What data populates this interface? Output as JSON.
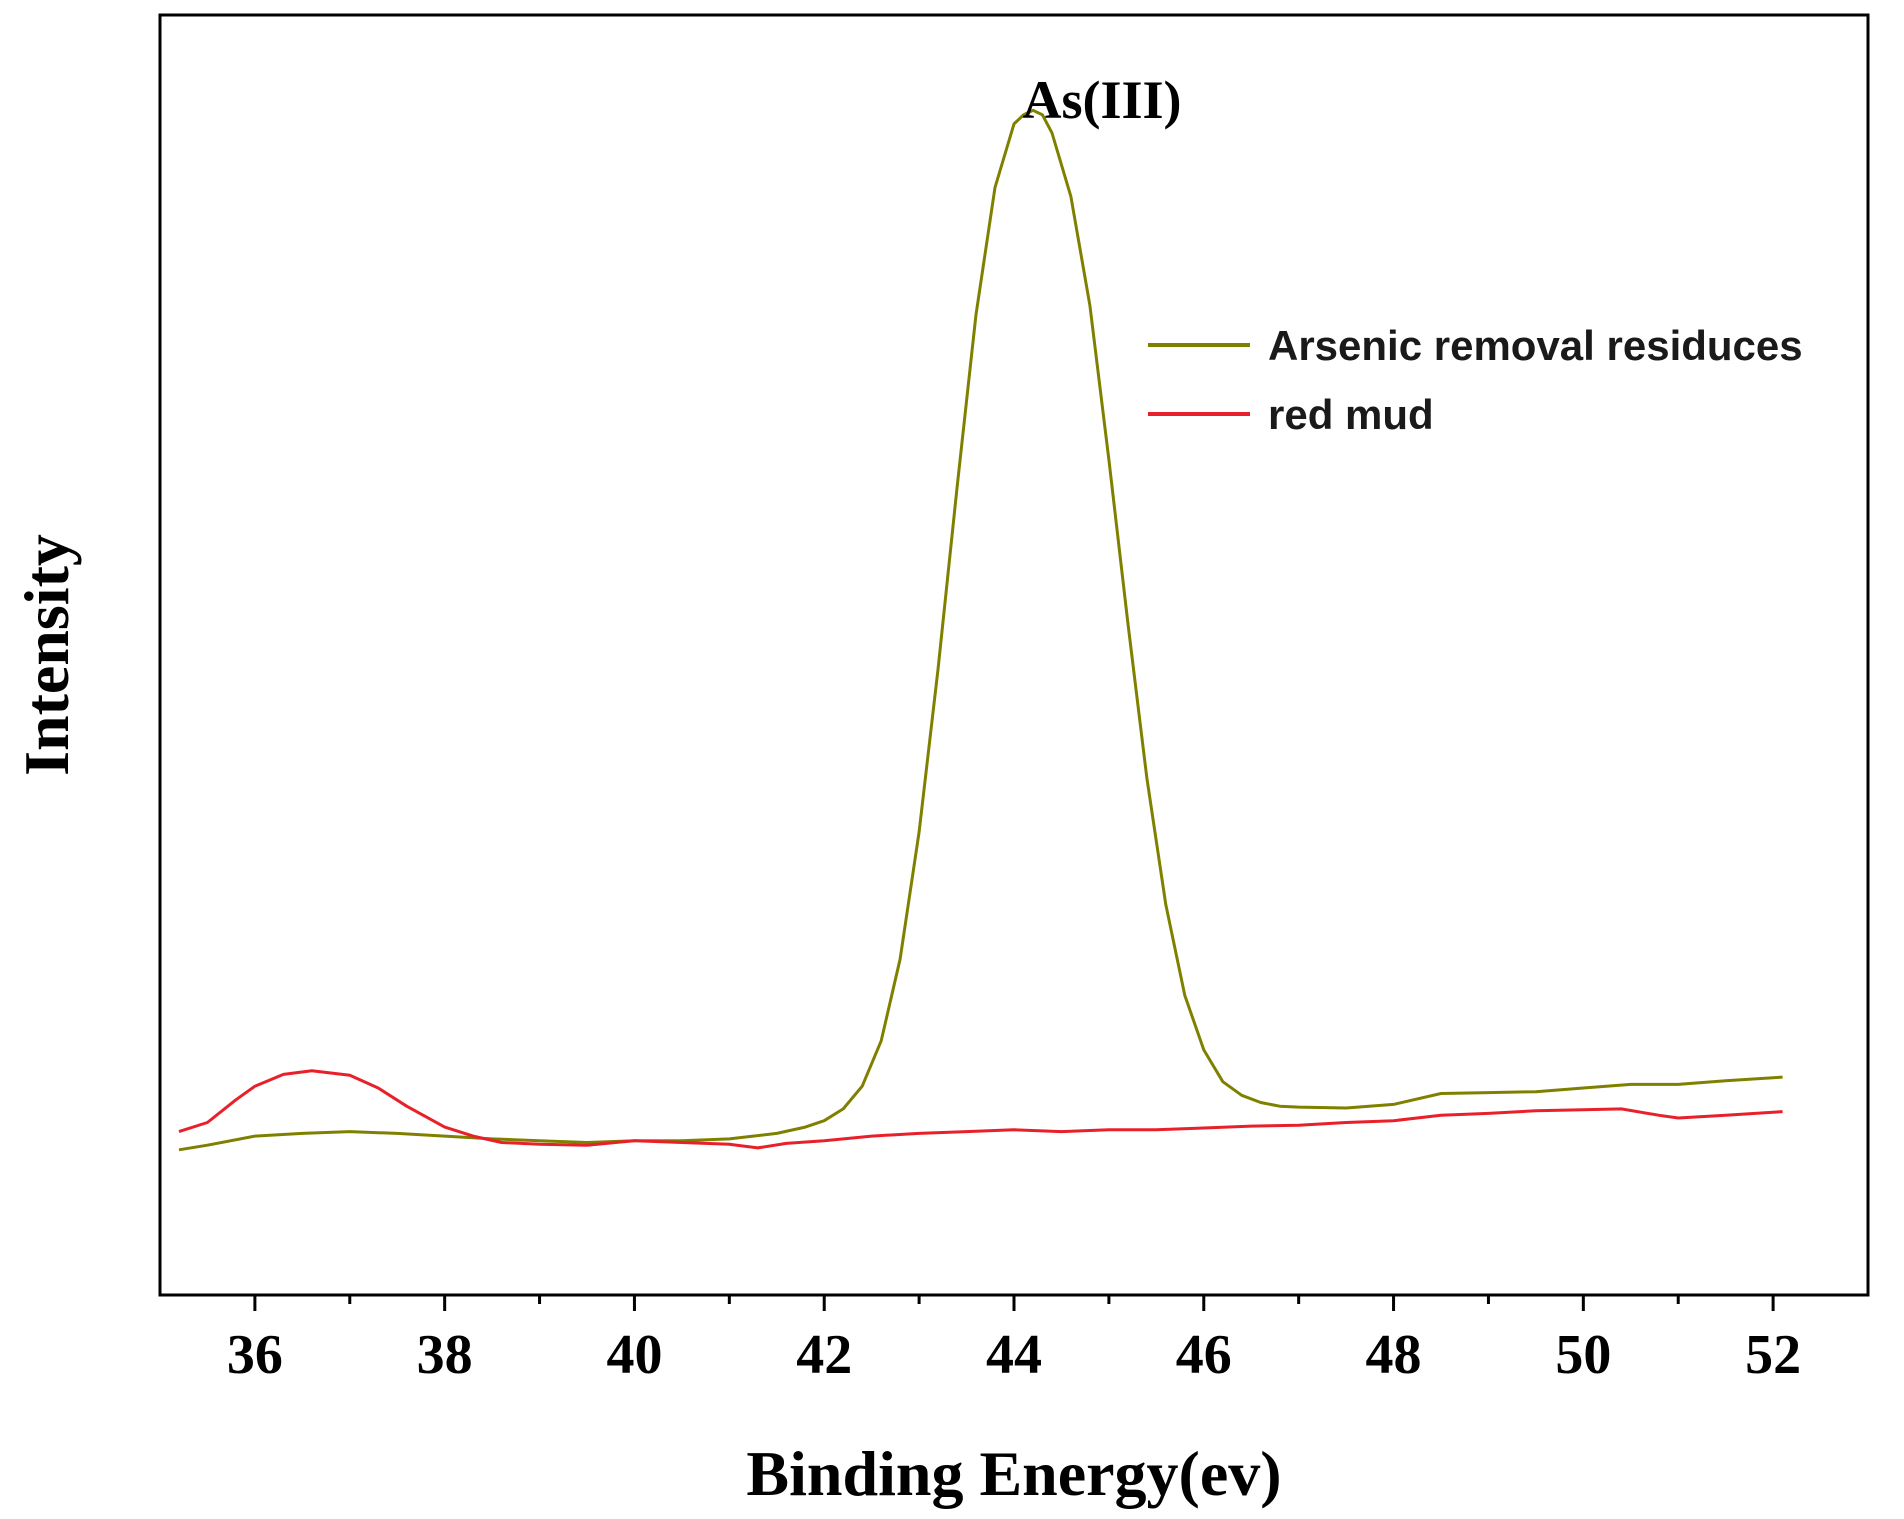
{
  "chart_data": {
    "type": "line",
    "title": "",
    "xlabel": "Binding Energy(ev)",
    "ylabel": "Intensity",
    "xlim": [
      35.0,
      53.0
    ],
    "ylim": [
      -1.6,
      12.5
    ],
    "xticks": [
      36,
      38,
      40,
      42,
      44,
      46,
      48,
      50,
      52
    ],
    "xtick_labels": [
      "36",
      "38",
      "40",
      "42",
      "44",
      "46",
      "48",
      "50",
      "52"
    ],
    "minor_xticks": [
      37,
      39,
      41,
      43,
      45,
      47,
      49,
      51
    ],
    "yticks_shown": false,
    "grid": false,
    "legend_position": "upper-right",
    "annotations": [
      {
        "text": "As(III)",
        "x": 44.2,
        "y": 11.6
      }
    ],
    "series": [
      {
        "name": "Arsenic removal residuces",
        "color": "#808000",
        "x": [
          35.2,
          35.5,
          36.0,
          36.5,
          37.0,
          37.5,
          38.0,
          38.5,
          39.0,
          39.5,
          40.0,
          40.5,
          41.0,
          41.5,
          41.8,
          42.0,
          42.2,
          42.4,
          42.6,
          42.8,
          43.0,
          43.2,
          43.4,
          43.6,
          43.8,
          44.0,
          44.1,
          44.2,
          44.3,
          44.4,
          44.6,
          44.8,
          45.0,
          45.2,
          45.4,
          45.6,
          45.8,
          46.0,
          46.2,
          46.4,
          46.6,
          46.8,
          47.0,
          47.5,
          48.0,
          48.5,
          49.0,
          49.5,
          50.0,
          50.5,
          51.0,
          51.5,
          52.1
        ],
        "values": [
          0.0,
          0.05,
          0.15,
          0.18,
          0.2,
          0.18,
          0.15,
          0.12,
          0.1,
          0.08,
          0.1,
          0.1,
          0.12,
          0.18,
          0.25,
          0.32,
          0.45,
          0.7,
          1.2,
          2.1,
          3.5,
          5.3,
          7.3,
          9.2,
          10.6,
          11.3,
          11.4,
          11.45,
          11.4,
          11.2,
          10.5,
          9.3,
          7.6,
          5.8,
          4.1,
          2.7,
          1.7,
          1.1,
          0.75,
          0.6,
          0.52,
          0.48,
          0.47,
          0.46,
          0.5,
          0.62,
          0.63,
          0.64,
          0.68,
          0.72,
          0.72,
          0.76,
          0.8
        ]
      },
      {
        "name": "red mud",
        "color": "#e8202a",
        "x": [
          35.2,
          35.5,
          35.8,
          36.0,
          36.3,
          36.6,
          37.0,
          37.3,
          37.6,
          38.0,
          38.3,
          38.6,
          39.0,
          39.5,
          40.0,
          40.5,
          41.0,
          41.3,
          41.6,
          42.0,
          42.5,
          43.0,
          43.5,
          44.0,
          44.5,
          45.0,
          45.5,
          46.0,
          46.5,
          47.0,
          47.5,
          48.0,
          48.5,
          49.0,
          49.5,
          50.0,
          50.4,
          50.8,
          51.0,
          51.5,
          52.1
        ],
        "values": [
          0.2,
          0.3,
          0.55,
          0.7,
          0.83,
          0.87,
          0.82,
          0.68,
          0.48,
          0.25,
          0.15,
          0.08,
          0.06,
          0.05,
          0.1,
          0.08,
          0.06,
          0.02,
          0.07,
          0.1,
          0.15,
          0.18,
          0.2,
          0.22,
          0.2,
          0.22,
          0.22,
          0.24,
          0.26,
          0.27,
          0.3,
          0.32,
          0.38,
          0.4,
          0.43,
          0.44,
          0.45,
          0.38,
          0.35,
          0.38,
          0.42
        ]
      }
    ]
  }
}
